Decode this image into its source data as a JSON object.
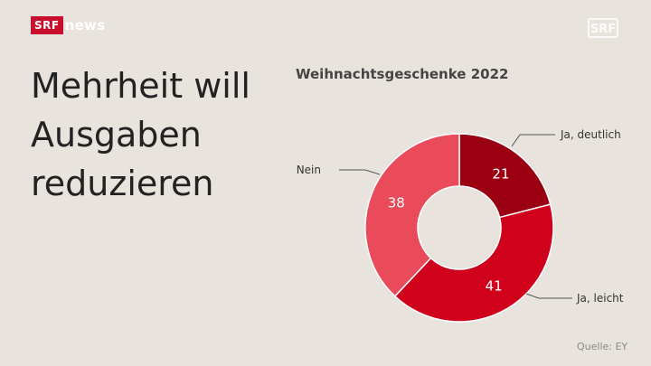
{
  "brand": {
    "srf": "SRF",
    "news": "news"
  },
  "headline": [
    "Mehrheit will",
    "Ausgaben",
    "reduzieren"
  ],
  "source": "Quelle: EY",
  "chart_data": {
    "type": "pie",
    "title": "Weihnachtsgeschenke 2022",
    "donut": true,
    "slices": [
      {
        "label": "Ja, deutlich",
        "value": 21,
        "color": "#9b0012"
      },
      {
        "label": "Ja, leicht",
        "value": 41,
        "color": "#d0021b"
      },
      {
        "label": "Nein",
        "value": 38,
        "color": "#ea4b5a"
      }
    ]
  }
}
